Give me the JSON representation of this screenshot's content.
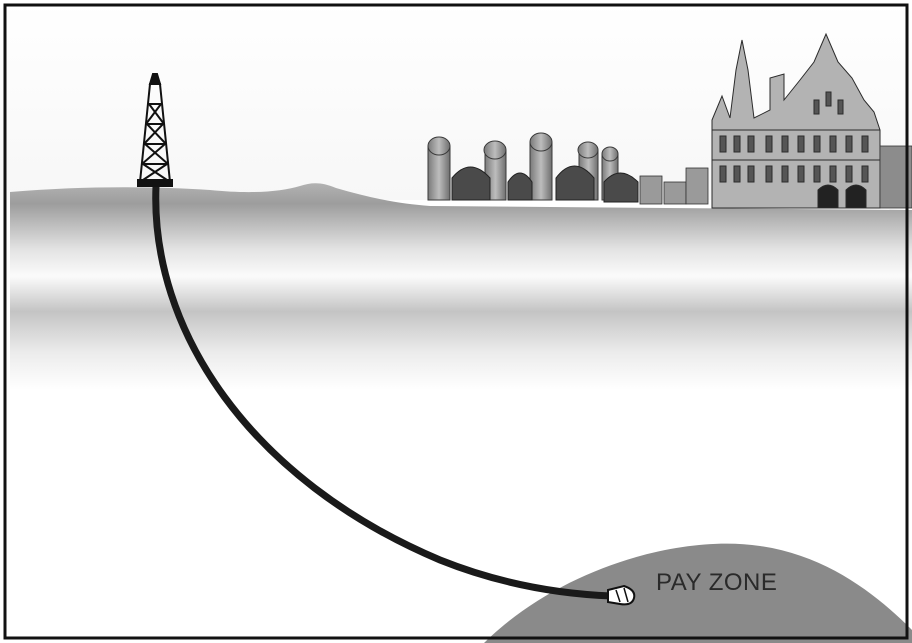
{
  "diagram": {
    "pay_zone_label": "PAY ZONE",
    "elements": {
      "derrick": "drilling-derrick-icon",
      "wellbore": "horizontal-wellbore",
      "drill_bit": "drill-bit-icon",
      "skyline": "city-skyline-illustration",
      "reservoir": "pay-zone-reservoir"
    },
    "colors": {
      "border": "#111111",
      "wellbore": "#1a1a1a",
      "reservoir": "#8a8a8a",
      "ground_dark": "#a9a9a9",
      "ground_light": "#f4f4f4"
    }
  }
}
